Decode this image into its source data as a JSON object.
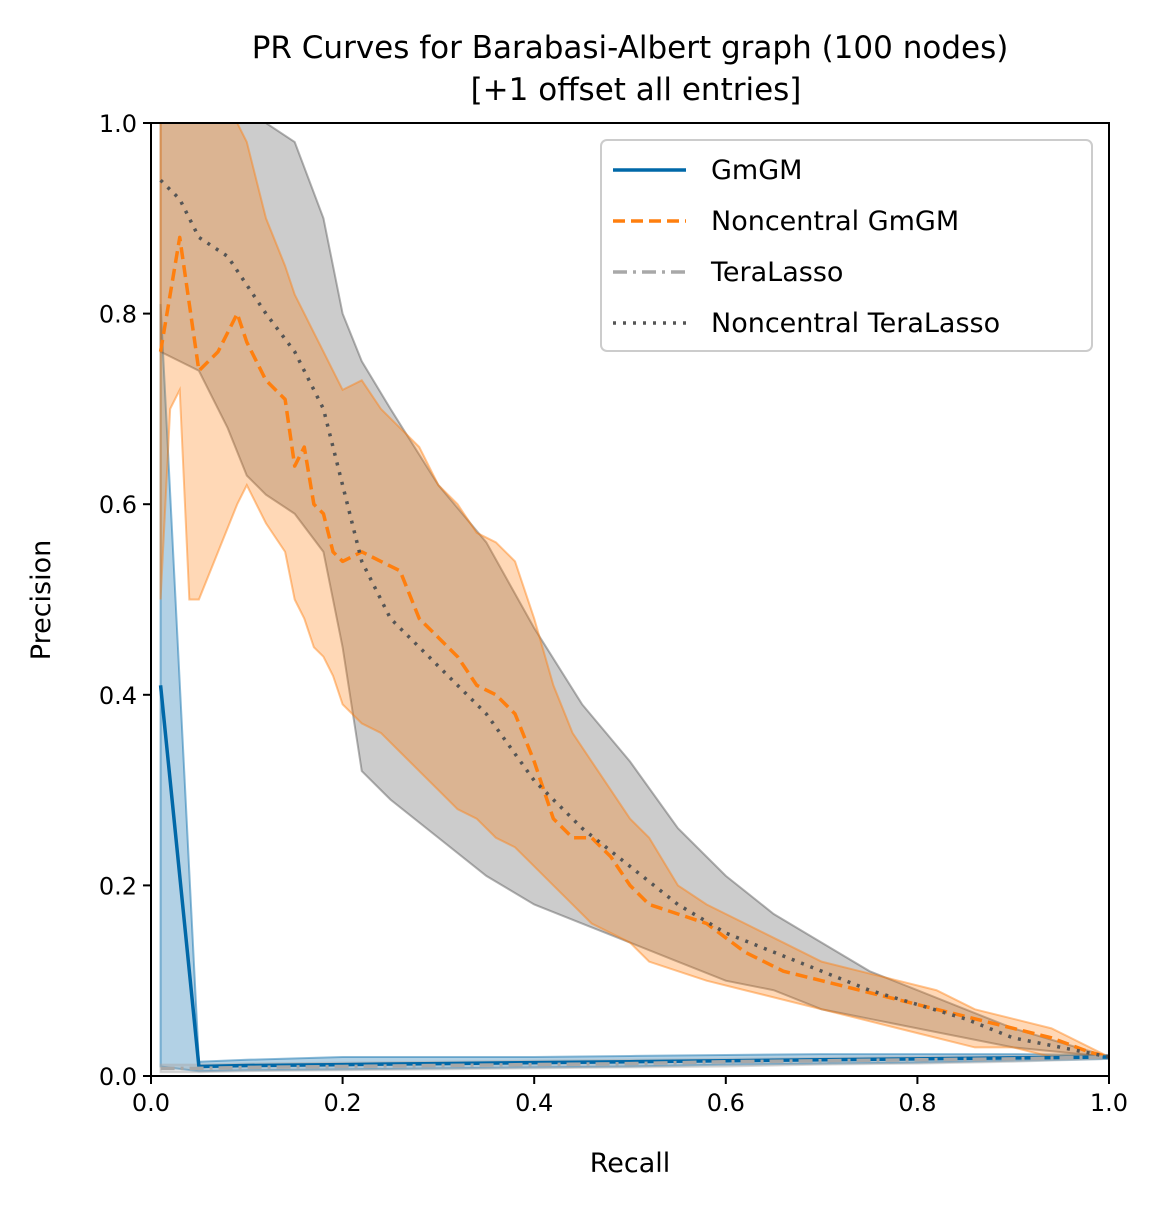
{
  "chart_data": {
    "type": "line",
    "title": "PR Curves for Barabasi-Albert graph (100 nodes)",
    "subtitle": "[+1 offset all entries]",
    "xlabel": "Recall",
    "ylabel": "Precision",
    "xlim": [
      0.0,
      1.0
    ],
    "ylim": [
      0.0,
      1.0
    ],
    "grid": false,
    "legend_position": "top-right",
    "x_ticks": [
      "0.0",
      "0.2",
      "0.4",
      "0.6",
      "0.8",
      "1.0"
    ],
    "y_ticks": [
      "0.0",
      "0.2",
      "0.4",
      "0.6",
      "0.8",
      "1.0"
    ],
    "series": [
      {
        "name": "GmGM",
        "color": "#0068a8",
        "style": "solid",
        "x": [
          0.01,
          0.05,
          0.1,
          0.2,
          0.3,
          0.4,
          0.5,
          0.6,
          0.7,
          0.8,
          0.9,
          1.0
        ],
        "y": [
          0.41,
          0.01,
          0.011,
          0.012,
          0.013,
          0.014,
          0.015,
          0.016,
          0.017,
          0.018,
          0.019,
          0.02
        ],
        "band_upper": [
          0.81,
          0.015,
          0.017,
          0.02,
          0.02,
          0.02,
          0.021,
          0.022,
          0.023,
          0.023,
          0.023,
          0.022
        ],
        "band_lower": [
          0.01,
          0.005,
          0.006,
          0.007,
          0.008,
          0.009,
          0.01,
          0.012,
          0.013,
          0.014,
          0.016,
          0.018
        ]
      },
      {
        "name": "Noncentral GmGM",
        "color": "#ff7f0e",
        "style": "dashed",
        "x": [
          0.01,
          0.02,
          0.03,
          0.04,
          0.05,
          0.07,
          0.09,
          0.1,
          0.12,
          0.14,
          0.15,
          0.16,
          0.17,
          0.18,
          0.19,
          0.2,
          0.22,
          0.24,
          0.26,
          0.28,
          0.3,
          0.32,
          0.34,
          0.36,
          0.38,
          0.4,
          0.42,
          0.44,
          0.46,
          0.48,
          0.5,
          0.52,
          0.55,
          0.58,
          0.62,
          0.66,
          0.7,
          0.74,
          0.78,
          0.82,
          0.86,
          0.9,
          0.94,
          0.98,
          1.0
        ],
        "y": [
          0.76,
          0.82,
          0.88,
          0.81,
          0.74,
          0.76,
          0.8,
          0.77,
          0.73,
          0.71,
          0.64,
          0.66,
          0.6,
          0.59,
          0.55,
          0.54,
          0.55,
          0.54,
          0.53,
          0.48,
          0.46,
          0.44,
          0.41,
          0.4,
          0.38,
          0.33,
          0.27,
          0.25,
          0.25,
          0.23,
          0.2,
          0.18,
          0.17,
          0.16,
          0.13,
          0.11,
          0.1,
          0.09,
          0.08,
          0.07,
          0.06,
          0.05,
          0.04,
          0.025,
          0.02
        ],
        "band_upper": [
          1.0,
          1.0,
          1.0,
          1.0,
          1.0,
          1.0,
          1.0,
          0.98,
          0.9,
          0.85,
          0.82,
          0.8,
          0.78,
          0.76,
          0.74,
          0.72,
          0.73,
          0.7,
          0.68,
          0.66,
          0.62,
          0.6,
          0.57,
          0.56,
          0.54,
          0.48,
          0.41,
          0.36,
          0.33,
          0.3,
          0.27,
          0.25,
          0.2,
          0.18,
          0.16,
          0.14,
          0.12,
          0.11,
          0.1,
          0.09,
          0.07,
          0.06,
          0.05,
          0.03,
          0.02
        ],
        "band_lower": [
          0.5,
          0.7,
          0.72,
          0.5,
          0.5,
          0.55,
          0.6,
          0.62,
          0.58,
          0.55,
          0.5,
          0.48,
          0.45,
          0.44,
          0.42,
          0.39,
          0.37,
          0.36,
          0.34,
          0.32,
          0.3,
          0.28,
          0.27,
          0.25,
          0.24,
          0.22,
          0.2,
          0.18,
          0.16,
          0.15,
          0.14,
          0.12,
          0.11,
          0.1,
          0.09,
          0.08,
          0.07,
          0.06,
          0.05,
          0.04,
          0.03,
          0.03,
          0.02,
          0.02,
          0.02
        ]
      },
      {
        "name": "TeraLasso",
        "color": "#a8a8a8",
        "style": "dashdot",
        "x": [
          0.01,
          0.05,
          0.1,
          0.2,
          0.3,
          0.4,
          0.5,
          0.6,
          0.7,
          0.8,
          0.9,
          1.0
        ],
        "y": [
          0.008,
          0.008,
          0.009,
          0.01,
          0.011,
          0.012,
          0.013,
          0.015,
          0.016,
          0.017,
          0.018,
          0.02
        ],
        "band_upper": [
          0.012,
          0.012,
          0.013,
          0.014,
          0.015,
          0.016,
          0.017,
          0.018,
          0.019,
          0.02,
          0.021,
          0.022
        ],
        "band_lower": [
          0.004,
          0.004,
          0.005,
          0.006,
          0.007,
          0.008,
          0.009,
          0.01,
          0.012,
          0.013,
          0.015,
          0.018
        ]
      },
      {
        "name": "Noncentral TeraLasso",
        "color": "#555555",
        "style": "dotted",
        "x": [
          0.01,
          0.03,
          0.05,
          0.08,
          0.1,
          0.12,
          0.15,
          0.18,
          0.2,
          0.22,
          0.25,
          0.3,
          0.35,
          0.4,
          0.45,
          0.5,
          0.55,
          0.6,
          0.65,
          0.7,
          0.75,
          0.8,
          0.85,
          0.9,
          0.95,
          1.0
        ],
        "y": [
          0.94,
          0.92,
          0.88,
          0.86,
          0.83,
          0.8,
          0.76,
          0.7,
          0.62,
          0.54,
          0.48,
          0.43,
          0.38,
          0.31,
          0.26,
          0.22,
          0.18,
          0.15,
          0.13,
          0.11,
          0.09,
          0.075,
          0.06,
          0.04,
          0.03,
          0.02
        ],
        "band_upper": [
          1.0,
          1.0,
          1.0,
          1.0,
          1.0,
          1.0,
          0.98,
          0.9,
          0.8,
          0.75,
          0.7,
          0.62,
          0.56,
          0.47,
          0.39,
          0.33,
          0.26,
          0.21,
          0.17,
          0.14,
          0.11,
          0.09,
          0.07,
          0.05,
          0.035,
          0.02
        ],
        "band_lower": [
          0.76,
          0.75,
          0.74,
          0.68,
          0.63,
          0.61,
          0.59,
          0.55,
          0.45,
          0.32,
          0.29,
          0.25,
          0.21,
          0.18,
          0.16,
          0.14,
          0.12,
          0.1,
          0.09,
          0.07,
          0.06,
          0.05,
          0.04,
          0.03,
          0.025,
          0.02
        ]
      }
    ],
    "legend_entries": [
      "GmGM",
      "Noncentral GmGM",
      "TeraLasso",
      "Noncentral TeraLasso"
    ]
  }
}
